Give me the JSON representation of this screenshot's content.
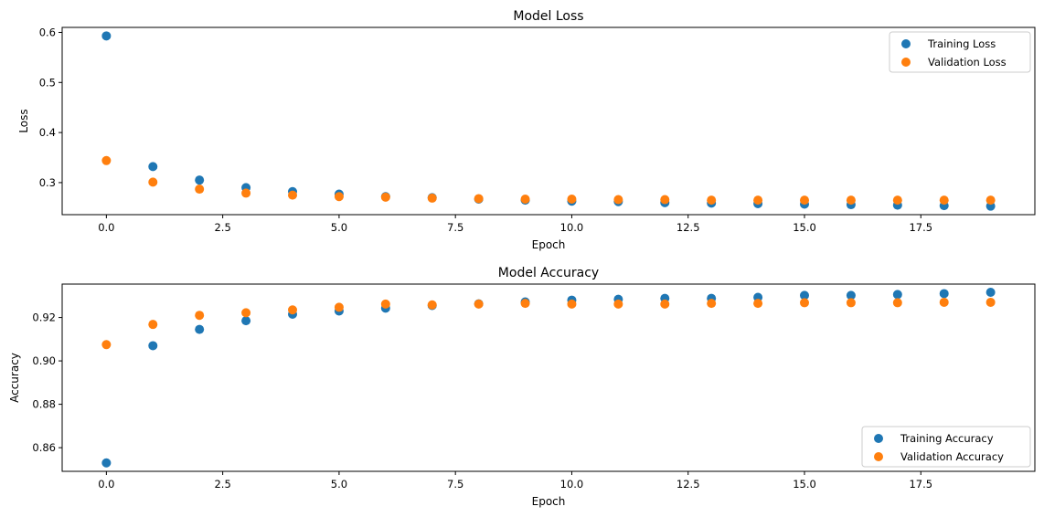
{
  "chart_data": [
    {
      "type": "scatter",
      "title": "Model Loss",
      "xlabel": "Epoch",
      "ylabel": "Loss",
      "xlim": [
        -0.95,
        19.95
      ],
      "ylim": [
        0.236,
        0.61
      ],
      "xticks": [
        0.0,
        2.5,
        5.0,
        7.5,
        10.0,
        12.5,
        15.0,
        17.5
      ],
      "xtick_labels": [
        "0.0",
        "2.5",
        "5.0",
        "7.5",
        "10.0",
        "12.5",
        "15.0",
        "17.5"
      ],
      "yticks": [
        0.3,
        0.4,
        0.5,
        0.6
      ],
      "ytick_labels": [
        "0.3",
        "0.4",
        "0.5",
        "0.6"
      ],
      "grid": false,
      "legend_position": "top-right",
      "x": [
        0,
        1,
        2,
        3,
        4,
        5,
        6,
        7,
        8,
        9,
        10,
        11,
        12,
        13,
        14,
        15,
        16,
        17,
        18,
        19
      ],
      "series": [
        {
          "name": "Training Loss",
          "color": "#1f77b4",
          "values": [
            0.593,
            0.332,
            0.305,
            0.29,
            0.282,
            0.277,
            0.272,
            0.27,
            0.267,
            0.265,
            0.263,
            0.262,
            0.26,
            0.259,
            0.258,
            0.257,
            0.256,
            0.255,
            0.254,
            0.253
          ]
        },
        {
          "name": "Validation Loss",
          "color": "#ff7f0e",
          "values": [
            0.344,
            0.301,
            0.287,
            0.279,
            0.275,
            0.272,
            0.271,
            0.269,
            0.268,
            0.267,
            0.267,
            0.266,
            0.266,
            0.265,
            0.265,
            0.265,
            0.265,
            0.265,
            0.265,
            0.265
          ]
        }
      ]
    },
    {
      "type": "scatter",
      "title": "Model Accuracy",
      "xlabel": "Epoch",
      "ylabel": "Accuracy",
      "xlim": [
        -0.95,
        19.95
      ],
      "ylim": [
        0.8491,
        0.9354
      ],
      "xticks": [
        0.0,
        2.5,
        5.0,
        7.5,
        10.0,
        12.5,
        15.0,
        17.5
      ],
      "xtick_labels": [
        "0.0",
        "2.5",
        "5.0",
        "7.5",
        "10.0",
        "12.5",
        "15.0",
        "17.5"
      ],
      "yticks": [
        0.86,
        0.88,
        0.9,
        0.92
      ],
      "ytick_labels": [
        "0.86",
        "0.88",
        "0.90",
        "0.92"
      ],
      "grid": false,
      "legend_position": "bottom-right",
      "x": [
        0,
        1,
        2,
        3,
        4,
        5,
        6,
        7,
        8,
        9,
        10,
        11,
        12,
        13,
        14,
        15,
        16,
        17,
        18,
        19
      ],
      "series": [
        {
          "name": "Training Accuracy",
          "color": "#1f77b4",
          "values": [
            0.853,
            0.907,
            0.9145,
            0.9185,
            0.9215,
            0.923,
            0.9243,
            0.9255,
            0.9263,
            0.9272,
            0.928,
            0.9284,
            0.9288,
            0.9288,
            0.9293,
            0.9302,
            0.9302,
            0.9306,
            0.931,
            0.9316
          ]
        },
        {
          "name": "Validation Accuracy",
          "color": "#ff7f0e",
          "values": [
            0.9075,
            0.9168,
            0.921,
            0.9222,
            0.9235,
            0.9247,
            0.9262,
            0.9258,
            0.9262,
            0.9265,
            0.9262,
            0.9262,
            0.9262,
            0.9265,
            0.9265,
            0.9268,
            0.9268,
            0.9268,
            0.927,
            0.927
          ]
        }
      ]
    }
  ]
}
